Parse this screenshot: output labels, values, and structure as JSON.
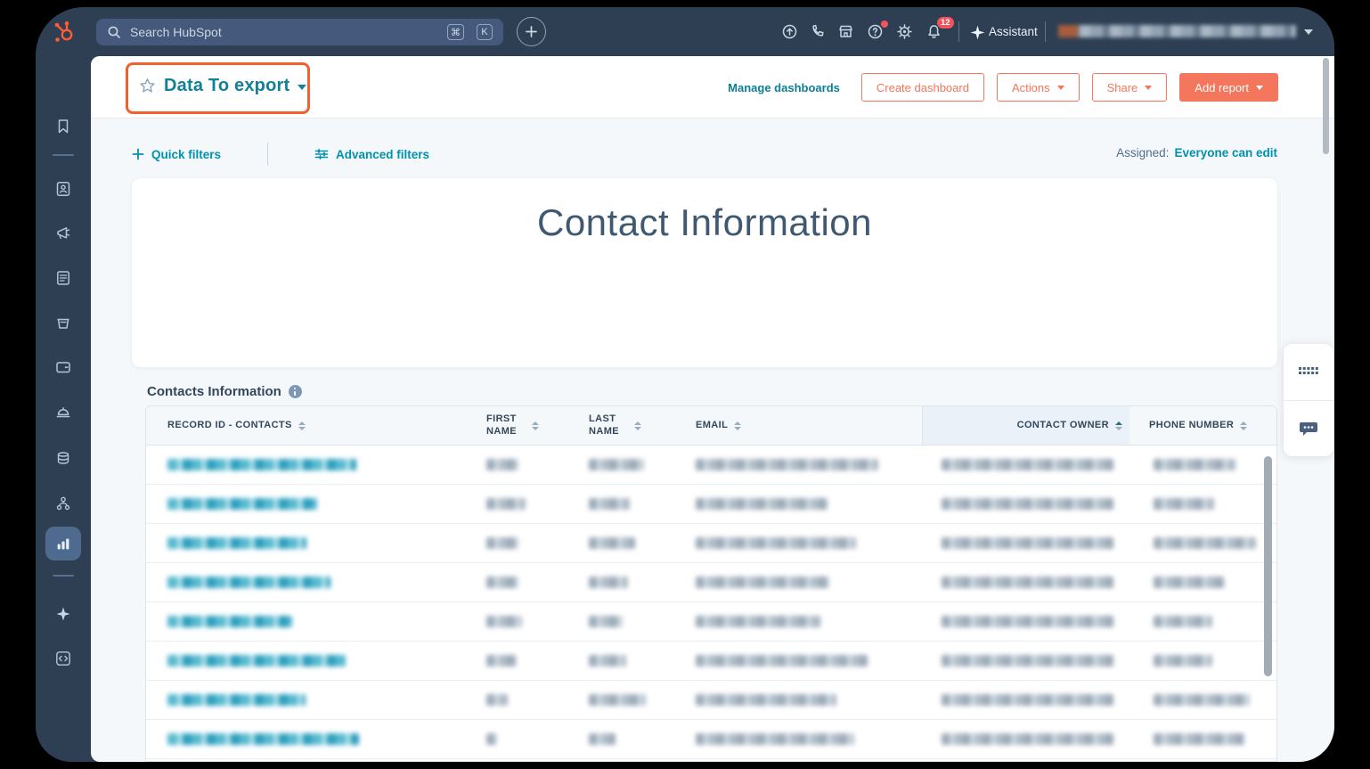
{
  "topbar": {
    "search_placeholder": "Search HubSpot",
    "shortcut_key_1": "⌘",
    "shortcut_key_2": "K",
    "assistant_label": "Assistant",
    "notification_count": "12",
    "user_name_redacted": true,
    "icons": [
      "search-icon",
      "plus-icon",
      "upload-icon",
      "calling-icon",
      "marketplace-icon",
      "help-icon",
      "settings-icon",
      "notifications-icon",
      "sparkle-icon"
    ]
  },
  "sidebar": {
    "icons": [
      "hubspot-logo",
      "bookmarks-icon",
      "crm-contacts-icon",
      "marketing-icon",
      "content-icon",
      "commerce-icon",
      "payments-icon",
      "service-icon",
      "data-management-icon",
      "automations-icon",
      "reporting-icon",
      "breeze-ai-icon",
      "developer-icon",
      "expand-icon"
    ],
    "active_item": "reporting"
  },
  "header": {
    "dashboard_title": "Data To export",
    "manage_dashboards_label": "Manage dashboards",
    "create_dashboard_label": "Create dashboard",
    "actions_label": "Actions",
    "share_label": "Share",
    "add_report_label": "Add report"
  },
  "filters": {
    "quick_filters_label": "Quick filters",
    "advanced_filters_label": "Advanced filters",
    "assigned_label": "Assigned:",
    "assigned_value": "Everyone can edit"
  },
  "report": {
    "title": "Contact Information"
  },
  "table": {
    "title": "Contacts Information",
    "columns": [
      {
        "label": "RECORD ID - CONTACTS",
        "sorted": false
      },
      {
        "label": "FIRST NAME",
        "sorted": false
      },
      {
        "label": "LAST NAME",
        "sorted": false
      },
      {
        "label": "EMAIL",
        "sorted": false
      },
      {
        "label": "CONTACT OWNER",
        "sorted": true
      },
      {
        "label": "PHONE NUMBER",
        "sorted": false
      }
    ],
    "rows_redacted": true,
    "rows": [
      {
        "cells": [
          212,
          36,
          62,
          205,
          193,
          92
        ]
      },
      {
        "cells": [
          168,
          44,
          46,
          148,
          193,
          68
        ]
      },
      {
        "cells": [
          156,
          36,
          52,
          180,
          193,
          115
        ]
      },
      {
        "cells": [
          183,
          36,
          44,
          150,
          193,
          80
        ]
      },
      {
        "cells": [
          140,
          40,
          38,
          140,
          193,
          66
        ]
      },
      {
        "cells": [
          200,
          34,
          42,
          193,
          193,
          66
        ]
      },
      {
        "cells": [
          155,
          24,
          64,
          158,
          193,
          108
        ]
      },
      {
        "cells": [
          215,
          12,
          30,
          178,
          193,
          102
        ]
      }
    ]
  },
  "colors": {
    "navy": "#2e3f54",
    "search_pill": "#44597b",
    "logo_orange": "#ff5c35",
    "button_orange": "#f4765c",
    "annotation_orange": "#f2602e",
    "teal_link": "#0091ae",
    "title_teal": "#12809b",
    "slate_text": "#33475b",
    "page_bg": "#f5f8fa",
    "badge_red": "#f2545b",
    "owner_col_highlight": "#eaf1f8"
  }
}
